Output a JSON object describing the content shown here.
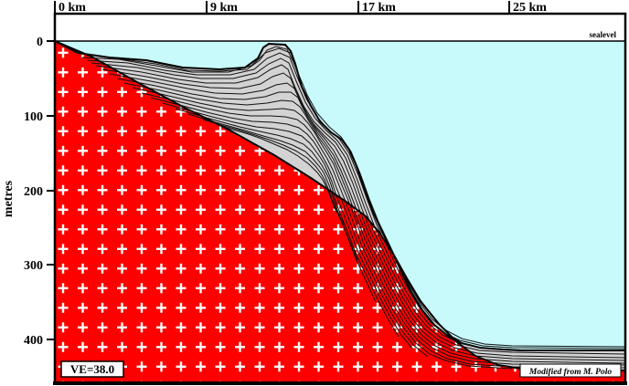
{
  "x_axis": {
    "ticks": [
      {
        "label": "0 km"
      },
      {
        "label": "9 km"
      },
      {
        "label": "17 km"
      },
      {
        "label": "25 km"
      }
    ]
  },
  "y_axis": {
    "title": "metres",
    "ticks": [
      {
        "label": "0"
      },
      {
        "label": "100"
      },
      {
        "label": "200"
      },
      {
        "label": "300"
      },
      {
        "label": "400"
      }
    ]
  },
  "sealevel_label": "sealevel",
  "ve_label": "VE=38.0",
  "credit": "Modified from M. Polo",
  "colors": {
    "basement": "#ff0000",
    "basement_cross": "#ffffff",
    "water": "#c8fafc",
    "sediment": "#d3d3d3",
    "stratal_lines": "#111111"
  }
}
